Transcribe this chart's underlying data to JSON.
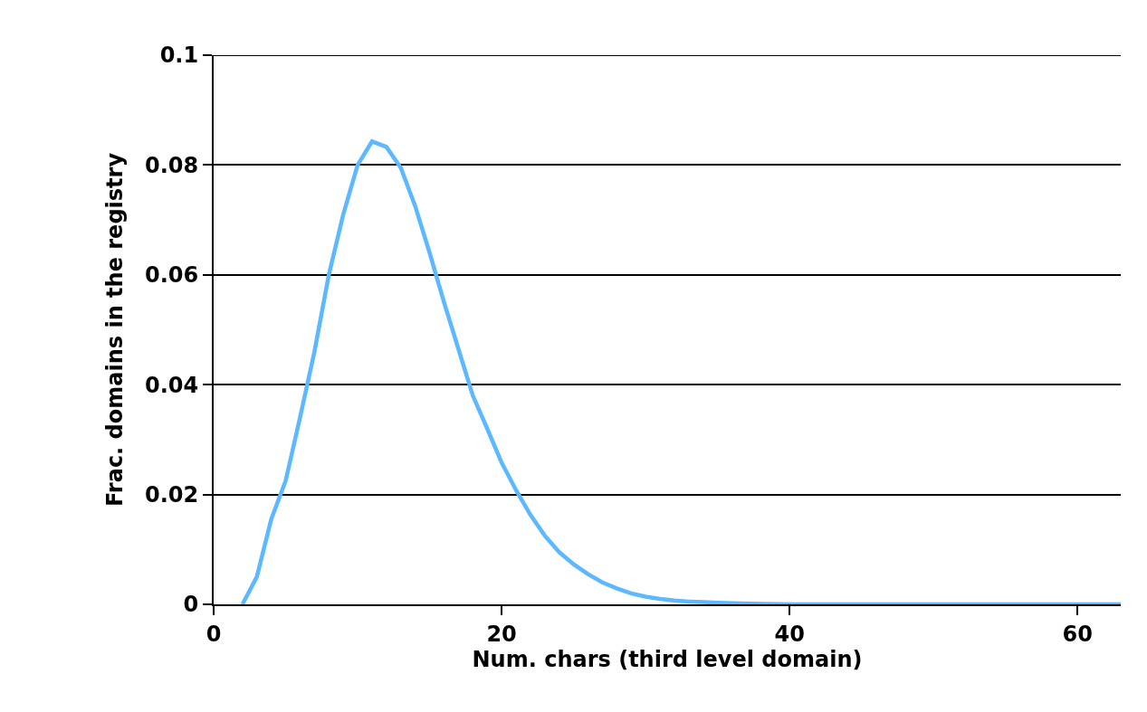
{
  "chart_data": {
    "type": "line",
    "xlabel": "Num. chars (third level domain)",
    "ylabel": "Frac. domains in the registry",
    "x": [
      2,
      3,
      4,
      5,
      6,
      7,
      8,
      9,
      10,
      11,
      12,
      13,
      14,
      15,
      16,
      17,
      18,
      19,
      20,
      21,
      22,
      23,
      24,
      25,
      26,
      27,
      28,
      29,
      30,
      31,
      32,
      33,
      34,
      35,
      36,
      38,
      40,
      45,
      50,
      55,
      60,
      63
    ],
    "series": [
      {
        "color": "#5cb8ff",
        "values": [
          0.0,
          0.005,
          0.0155,
          0.0225,
          0.034,
          0.046,
          0.06,
          0.071,
          0.08,
          0.0843,
          0.0833,
          0.0795,
          0.0725,
          0.064,
          0.055,
          0.0465,
          0.038,
          0.032,
          0.0258,
          0.0208,
          0.0163,
          0.0125,
          0.0095,
          0.0073,
          0.0055,
          0.004,
          0.0029,
          0.002,
          0.0014,
          0.001,
          0.0007,
          0.0005,
          0.0004,
          0.0003,
          0.0002,
          0.0001,
          0,
          0,
          0,
          0,
          0,
          0
        ]
      }
    ],
    "xlim": [
      0,
      63
    ],
    "xticks": [
      0,
      20,
      40,
      60
    ],
    "ylim": [
      0,
      0.1
    ],
    "yticks": [
      0,
      0.02,
      0.04,
      0.06,
      0.08,
      0.1
    ],
    "grid": "y",
    "marker": "none",
    "line_style": "solid"
  }
}
